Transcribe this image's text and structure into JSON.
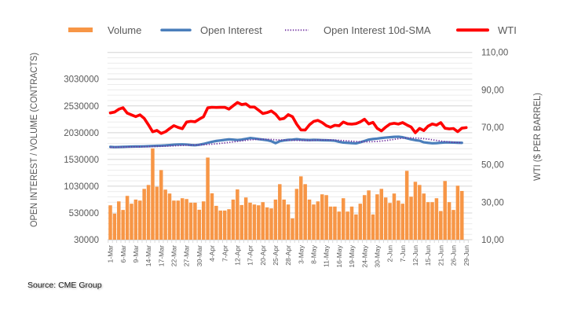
{
  "source": "Source: CME Group",
  "chart_data": {
    "type": "bar",
    "title": "",
    "xlabel": "",
    "ylabel": "OPEN INTEREST / VOLUME (CONTRACTS)",
    "ylabel_right": "WTI ($ PER BARREL)",
    "grid": true,
    "legend_position": "top",
    "category_count": 85,
    "x_tick_interval": 3,
    "x_tick_labels": [
      "1-Mar",
      "6-Mar",
      "9-Mar",
      "14-Mar",
      "17-Mar",
      "22-Mar",
      "27-Mar",
      "30-Mar",
      "4-Apr",
      "7-Apr",
      "12-Apr",
      "17-Apr",
      "20-Apr",
      "25-Apr",
      "28-Apr",
      "3-May",
      "8-May",
      "11-May",
      "16-May",
      "19-May",
      "24-May",
      "30-May",
      "2-Jun",
      "7-Jun",
      "12-Jun",
      "15-Jun",
      "21-Jun",
      "26-Jun",
      "29-Jun"
    ],
    "y_left": {
      "min": 30000,
      "max": 3530000,
      "major_step": 500000,
      "tick_labels": [
        "30000",
        "530000",
        "1030000",
        "1530000",
        "2030000",
        "2530000",
        "3030000"
      ]
    },
    "y_right": {
      "min": 10,
      "max": 110,
      "tick_labels": [
        "10,00",
        "30,00",
        "50,00",
        "70,00",
        "90,00",
        "110,00"
      ]
    },
    "series": [
      {
        "name": "Volume",
        "type": "bar",
        "axis": "left",
        "color": "#F79646",
        "values": [
          673000,
          517000,
          746000,
          586000,
          849000,
          703000,
          780000,
          761000,
          980000,
          1053000,
          1736000,
          1020000,
          1331000,
          966000,
          893000,
          761000,
          761000,
          805000,
          790000,
          722000,
          722000,
          590000,
          746000,
          1565000,
          897000,
          663000,
          575000,
          575000,
          600000,
          780000,
          970000,
          678000,
          819000,
          722000,
          688000,
          673000,
          732000,
          634000,
          615000,
          780000,
          1068000,
          780000,
          688000,
          429000,
          980000,
          1214000,
          1068000,
          780000,
          688000,
          746000,
          878000,
          863000,
          649000,
          649000,
          556000,
          805000,
          556000,
          649000,
          502000,
          703000,
          863000,
          951000,
          502000,
          878000,
          980000,
          819000,
          717000,
          893000,
          761000,
          703000,
          1317000,
          834000,
          1112000,
          1053000,
          893000,
          732000,
          732000,
          805000,
          566000,
          1127000,
          732000,
          586000,
          1039000,
          941000,
          null
        ]
      },
      {
        "name": "Open Interest",
        "type": "line",
        "axis": "left",
        "color": "#4A7EBB",
        "values": [
          1765000,
          1760000,
          1762000,
          1765000,
          1768000,
          1770000,
          1772000,
          1772000,
          1775000,
          1778000,
          1782000,
          1785000,
          1788000,
          1792000,
          1798000,
          1805000,
          1810000,
          1812000,
          1808000,
          1800000,
          1795000,
          1805000,
          1820000,
          1840000,
          1860000,
          1875000,
          1885000,
          1895000,
          1905000,
          1900000,
          1893000,
          1900000,
          1915000,
          1930000,
          1922000,
          1910000,
          1900000,
          1890000,
          1870000,
          1835000,
          1870000,
          1885000,
          1895000,
          1900000,
          1908000,
          1900000,
          1895000,
          1892000,
          1895000,
          1893000,
          1890000,
          1888000,
          1885000,
          1880000,
          1860000,
          1845000,
          1840000,
          1835000,
          1830000,
          1850000,
          1875000,
          1900000,
          1912000,
          1920000,
          1930000,
          1938000,
          1945000,
          1952000,
          1955000,
          1945000,
          1925000,
          1905000,
          1890000,
          1880000,
          1850000,
          1840000,
          1832000,
          1835000,
          1842000,
          1848000,
          1848000,
          1845000,
          1842000,
          1840000,
          null
        ]
      },
      {
        "name": "Open Interest 10d-SMA",
        "type": "line",
        "style": "dotted",
        "axis": "left",
        "color": "#7030A0",
        "values": [
          1755000,
          1757000,
          1759000,
          1760000,
          1762000,
          1763000,
          1765000,
          1766000,
          1767000,
          1768700,
          1770400,
          1772900,
          1775500,
          1778200,
          1781200,
          1784700,
          1788500,
          1792500,
          1795800,
          1798000,
          1799300,
          1801300,
          1804500,
          1809300,
          1815500,
          1822500,
          1830000,
          1838300,
          1848000,
          1858000,
          1867800,
          1877300,
          1886800,
          1895800,
          1902000,
          1905500,
          1907000,
          1906500,
          1903000,
          1896500,
          1894200,
          1892700,
          1890700,
          1887700,
          1886300,
          1885300,
          1884800,
          1885000,
          1887500,
          1893300,
          1895300,
          1895600,
          1894600,
          1892600,
          1887800,
          1882300,
          1876800,
          1871100,
          1864600,
          1860300,
          1858800,
          1860000,
          1862700,
          1866700,
          1873700,
          1883000,
          1893500,
          1905200,
          1917700,
          1927200,
          1932200,
          1932700,
          1930500,
          1926500,
          1918500,
          1908700,
          1897400,
          1885700,
          1874400,
          1864700,
          1857000,
          1851000,
          1846200,
          1842200,
          null
        ]
      },
      {
        "name": "WTI",
        "type": "line",
        "axis": "right",
        "color": "#FF0000",
        "values": [
          77.69,
          78.16,
          79.68,
          80.46,
          77.58,
          76.66,
          75.72,
          76.68,
          74.8,
          71.33,
          67.61,
          68.35,
          66.74,
          67.64,
          69.33,
          70.9,
          69.96,
          69.26,
          72.81,
          73.2,
          72.97,
          74.37,
          75.67,
          80.42,
          80.71,
          80.61,
          80.7,
          80.7,
          79.74,
          81.53,
          83.26,
          82.16,
          82.52,
          80.83,
          80.86,
          79.16,
          77.37,
          77.87,
          78.76,
          77.07,
          74.3,
          74.76,
          76.78,
          75.66,
          71.66,
          68.6,
          68.56,
          71.34,
          73.16,
          73.71,
          72.56,
          70.87,
          70.04,
          71.11,
          70.86,
          72.83,
          71.86,
          71.69,
          71.99,
          72.91,
          74.34,
          71.83,
          72.67,
          69.46,
          68.09,
          70.1,
          71.74,
          72.15,
          71.74,
          72.53,
          71.29,
          70.17,
          67.12,
          69.42,
          68.27,
          70.62,
          71.78,
          71.19,
          72.53,
          69.51,
          69.16,
          69.37,
          67.7,
          69.56,
          69.86
        ]
      }
    ]
  }
}
